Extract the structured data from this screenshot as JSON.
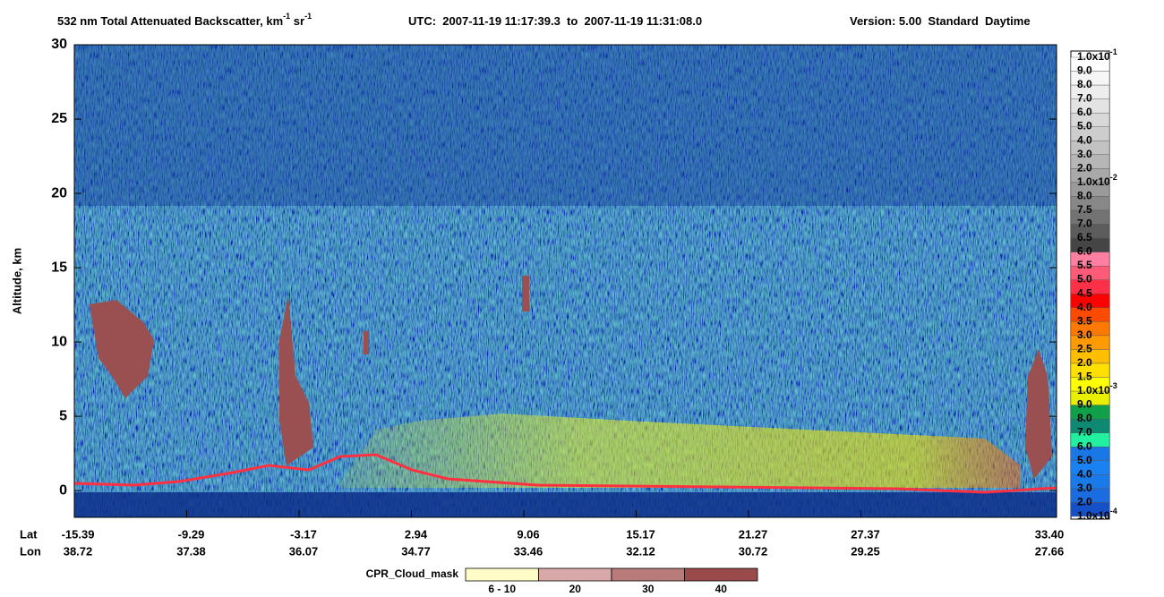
{
  "chart_data": {
    "type": "curtain",
    "title": {
      "main": "532 nm Total Attenuated Backscatter, km",
      "exp1": "-1",
      "unit2": " sr",
      "exp2": "-1",
      "utc": "UTC:  2007-11-19 11:17:39.3  to  2007-11-19 11:31:08.0",
      "version": "Version: 5.00  Standard  Daytime"
    },
    "ylabel": "Altitude, km",
    "ylim": [
      -1.8,
      30
    ],
    "yticks": [
      0,
      5,
      10,
      15,
      20,
      25,
      30
    ],
    "x_row_labels": [
      "Lat",
      "Lon"
    ],
    "lat": [
      "-15.39",
      "-9.29",
      "-3.17",
      "2.94",
      "9.06",
      "15.17",
      "21.27",
      "27.37",
      "33.40"
    ],
    "lon": [
      "38.72",
      "37.38",
      "36.07",
      "34.77",
      "33.46",
      "32.12",
      "30.72",
      "29.25",
      "27.66"
    ],
    "colorbar": {
      "labels": [
        {
          "label": "1.0x10",
          "exp": "-1"
        },
        {
          "label": "9.0"
        },
        {
          "label": "8.0"
        },
        {
          "label": "7.0"
        },
        {
          "label": "6.0"
        },
        {
          "label": "5.0"
        },
        {
          "label": "4.0"
        },
        {
          "label": "3.0"
        },
        {
          "label": "2.0"
        },
        {
          "label": "1.0x10",
          "exp": "-2"
        },
        {
          "label": "8.0"
        },
        {
          "label": "7.5"
        },
        {
          "label": "7.0"
        },
        {
          "label": "6.5"
        },
        {
          "label": "6.0"
        },
        {
          "label": "5.5"
        },
        {
          "label": "5.0"
        },
        {
          "label": "4.5"
        },
        {
          "label": "4.0"
        },
        {
          "label": "3.5"
        },
        {
          "label": "3.0"
        },
        {
          "label": "2.5"
        },
        {
          "label": "2.0"
        },
        {
          "label": "1.5"
        },
        {
          "label": "1.0x10",
          "exp": "-3"
        },
        {
          "label": "9.0"
        },
        {
          "label": "8.0"
        },
        {
          "label": "7.0"
        },
        {
          "label": "6.0"
        },
        {
          "label": "5.0"
        },
        {
          "label": "4.0"
        },
        {
          "label": "3.0"
        },
        {
          "label": "2.0"
        },
        {
          "label": "1.0x10",
          "exp": "-4"
        }
      ],
      "colors": [
        "#ffffff",
        "#f6f6f6",
        "#ededed",
        "#e3e3e3",
        "#d8d8d8",
        "#cdcdcd",
        "#c2c2c2",
        "#b6b6b6",
        "#a9a9a9",
        "#9a9a9a",
        "#888888",
        "#737373",
        "#5c5c5c",
        "#454545",
        "#ff7fa0",
        "#ff5a78",
        "#ff3048",
        "#ff0000",
        "#ff4a00",
        "#ff7800",
        "#ff9a00",
        "#ffbe00",
        "#ffe000",
        "#ffff00",
        "#e8f000",
        "#11a04a",
        "#0e8a74",
        "#20f0a0",
        "#1a78e6",
        "#1a82f0",
        "#1a7ae8",
        "#1a6ce0",
        "#1450c8"
      ]
    },
    "cpr_legend": {
      "title": "CPR_Cloud_mask",
      "labels": [
        "6 - 10",
        "20",
        "30",
        "40"
      ],
      "colors": [
        "#fffcc8",
        "#d9a9a9",
        "#b97a7a",
        "#9a4a4a"
      ]
    }
  }
}
